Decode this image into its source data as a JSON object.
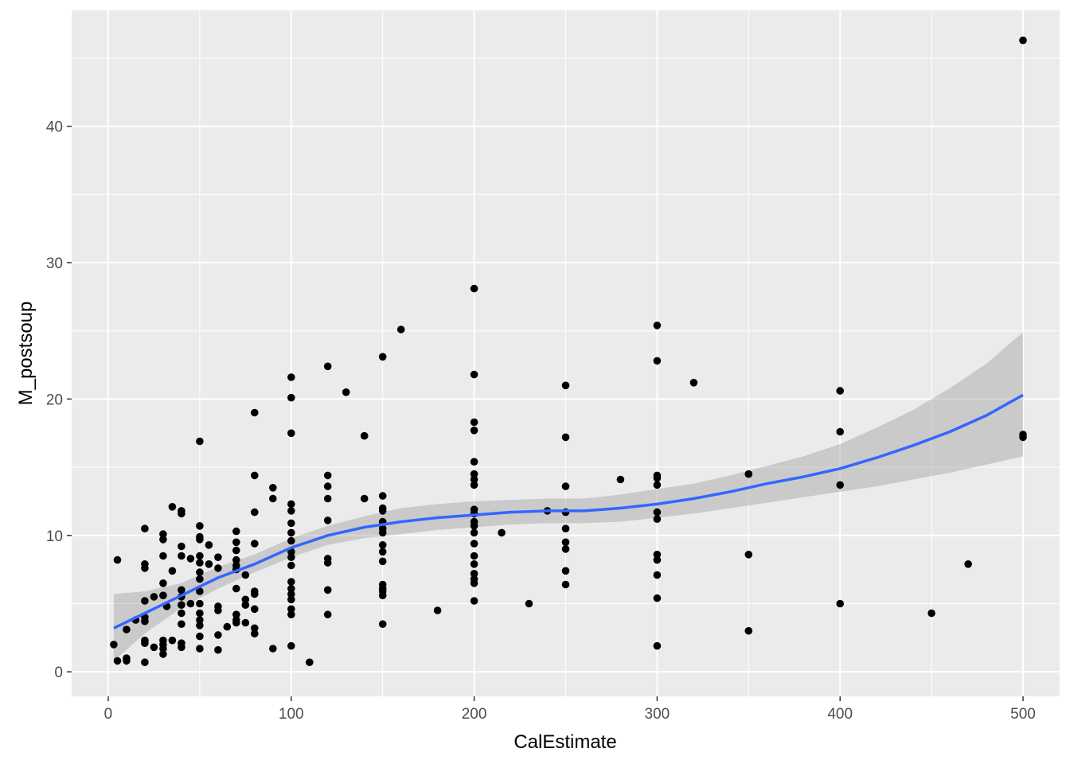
{
  "colors": {
    "panel_background": "#EBEBEB",
    "grid": "#FFFFFF",
    "points": "#000000",
    "smooth_line": "#3366FF",
    "confidence_band": "#999999",
    "tick": "#333333"
  },
  "chart_data": {
    "type": "scatter",
    "title": "",
    "xlabel": "CalEstimate",
    "ylabel": "M_postsoup",
    "xlim": [
      -20,
      520
    ],
    "ylim": [
      -1.8,
      48.5
    ],
    "x_ticks": [
      0,
      100,
      200,
      300,
      400,
      500
    ],
    "x_tick_labels": [
      "0",
      "100",
      "200",
      "300",
      "400",
      "500"
    ],
    "y_ticks": [
      0,
      10,
      20,
      30,
      40
    ],
    "y_tick_labels": [
      "0",
      "10",
      "20",
      "30",
      "40"
    ],
    "grid": true,
    "legend": "none",
    "series": [
      {
        "type": "scatter",
        "points": [
          [
            3,
            2.0
          ],
          [
            5,
            8.2
          ],
          [
            5,
            0.8
          ],
          [
            10,
            3.1
          ],
          [
            10,
            1.0
          ],
          [
            10,
            0.8
          ],
          [
            15,
            3.8
          ],
          [
            20,
            10.5
          ],
          [
            20,
            7.9
          ],
          [
            20,
            7.6
          ],
          [
            20,
            5.2
          ],
          [
            20,
            4.0
          ],
          [
            20,
            3.7
          ],
          [
            20,
            2.3
          ],
          [
            20,
            2.1
          ],
          [
            20,
            0.7
          ],
          [
            25,
            5.5
          ],
          [
            25,
            1.8
          ],
          [
            30,
            10.1
          ],
          [
            30,
            9.7
          ],
          [
            30,
            8.5
          ],
          [
            30,
            6.5
          ],
          [
            30,
            5.6
          ],
          [
            30,
            2.3
          ],
          [
            30,
            2.0
          ],
          [
            30,
            1.7
          ],
          [
            30,
            1.3
          ],
          [
            32,
            4.8
          ],
          [
            35,
            12.1
          ],
          [
            35,
            7.4
          ],
          [
            35,
            2.3
          ],
          [
            40,
            11.8
          ],
          [
            40,
            11.6
          ],
          [
            40,
            9.2
          ],
          [
            40,
            8.5
          ],
          [
            40,
            6.0
          ],
          [
            40,
            5.5
          ],
          [
            40,
            4.9
          ],
          [
            40,
            4.3
          ],
          [
            40,
            3.5
          ],
          [
            40,
            2.1
          ],
          [
            40,
            1.8
          ],
          [
            45,
            5.0
          ],
          [
            45,
            8.3
          ],
          [
            50,
            16.9
          ],
          [
            50,
            10.7
          ],
          [
            50,
            9.9
          ],
          [
            50,
            9.7
          ],
          [
            50,
            8.5
          ],
          [
            50,
            8.0
          ],
          [
            50,
            7.3
          ],
          [
            50,
            6.8
          ],
          [
            50,
            5.9
          ],
          [
            50,
            5.0
          ],
          [
            50,
            4.3
          ],
          [
            50,
            3.8
          ],
          [
            50,
            3.4
          ],
          [
            50,
            2.6
          ],
          [
            50,
            1.7
          ],
          [
            55,
            9.3
          ],
          [
            55,
            7.9
          ],
          [
            60,
            8.4
          ],
          [
            60,
            7.6
          ],
          [
            60,
            4.8
          ],
          [
            60,
            4.5
          ],
          [
            60,
            2.7
          ],
          [
            60,
            1.6
          ],
          [
            65,
            3.3
          ],
          [
            70,
            10.3
          ],
          [
            70,
            9.5
          ],
          [
            70,
            8.9
          ],
          [
            70,
            8.2
          ],
          [
            70,
            7.8
          ],
          [
            70,
            7.5
          ],
          [
            70,
            6.1
          ],
          [
            70,
            4.2
          ],
          [
            70,
            3.8
          ],
          [
            70,
            3.6
          ],
          [
            75,
            7.1
          ],
          [
            75,
            5.3
          ],
          [
            75,
            4.9
          ],
          [
            75,
            3.6
          ],
          [
            80,
            19.0
          ],
          [
            80,
            14.4
          ],
          [
            80,
            11.7
          ],
          [
            80,
            9.4
          ],
          [
            80,
            5.9
          ],
          [
            80,
            5.7
          ],
          [
            80,
            4.6
          ],
          [
            80,
            3.2
          ],
          [
            80,
            2.8
          ],
          [
            90,
            13.5
          ],
          [
            90,
            12.7
          ],
          [
            90,
            1.7
          ],
          [
            100,
            21.6
          ],
          [
            100,
            20.1
          ],
          [
            100,
            17.5
          ],
          [
            100,
            12.3
          ],
          [
            100,
            11.8
          ],
          [
            100,
            10.9
          ],
          [
            100,
            10.2
          ],
          [
            100,
            9.6
          ],
          [
            100,
            8.8
          ],
          [
            100,
            8.4
          ],
          [
            100,
            7.8
          ],
          [
            100,
            6.6
          ],
          [
            100,
            6.1
          ],
          [
            100,
            5.7
          ],
          [
            100,
            5.3
          ],
          [
            100,
            4.6
          ],
          [
            100,
            4.2
          ],
          [
            100,
            1.9
          ],
          [
            110,
            0.7
          ],
          [
            120,
            22.4
          ],
          [
            120,
            14.4
          ],
          [
            120,
            13.6
          ],
          [
            120,
            12.7
          ],
          [
            120,
            11.1
          ],
          [
            120,
            8.3
          ],
          [
            120,
            8.0
          ],
          [
            120,
            6.0
          ],
          [
            120,
            4.2
          ],
          [
            130,
            20.5
          ],
          [
            140,
            17.3
          ],
          [
            140,
            12.7
          ],
          [
            150,
            23.1
          ],
          [
            150,
            12.9
          ],
          [
            150,
            12.0
          ],
          [
            150,
            11.8
          ],
          [
            150,
            11.0
          ],
          [
            150,
            10.5
          ],
          [
            150,
            10.2
          ],
          [
            150,
            9.3
          ],
          [
            150,
            8.8
          ],
          [
            150,
            8.1
          ],
          [
            150,
            6.4
          ],
          [
            150,
            6.1
          ],
          [
            150,
            5.9
          ],
          [
            150,
            5.6
          ],
          [
            150,
            3.5
          ],
          [
            160,
            25.1
          ],
          [
            180,
            4.5
          ],
          [
            200,
            28.1
          ],
          [
            200,
            21.8
          ],
          [
            200,
            18.3
          ],
          [
            200,
            17.7
          ],
          [
            200,
            15.4
          ],
          [
            200,
            14.5
          ],
          [
            200,
            14.1
          ],
          [
            200,
            13.7
          ],
          [
            200,
            11.9
          ],
          [
            200,
            11.6
          ],
          [
            200,
            11.0
          ],
          [
            200,
            10.7
          ],
          [
            200,
            10.2
          ],
          [
            200,
            9.4
          ],
          [
            200,
            8.5
          ],
          [
            200,
            7.9
          ],
          [
            200,
            7.2
          ],
          [
            200,
            6.8
          ],
          [
            200,
            6.5
          ],
          [
            200,
            5.2
          ],
          [
            215,
            10.2
          ],
          [
            230,
            5.0
          ],
          [
            240,
            11.8
          ],
          [
            250,
            21.0
          ],
          [
            250,
            17.2
          ],
          [
            250,
            13.6
          ],
          [
            250,
            11.7
          ],
          [
            250,
            10.5
          ],
          [
            250,
            9.5
          ],
          [
            250,
            9.0
          ],
          [
            250,
            7.4
          ],
          [
            250,
            6.4
          ],
          [
            280,
            14.1
          ],
          [
            300,
            25.4
          ],
          [
            300,
            22.8
          ],
          [
            300,
            14.4
          ],
          [
            300,
            14.2
          ],
          [
            300,
            13.7
          ],
          [
            300,
            11.7
          ],
          [
            300,
            11.2
          ],
          [
            300,
            8.6
          ],
          [
            300,
            8.2
          ],
          [
            300,
            7.1
          ],
          [
            300,
            5.4
          ],
          [
            300,
            1.9
          ],
          [
            320,
            21.2
          ],
          [
            350,
            14.5
          ],
          [
            350,
            8.6
          ],
          [
            350,
            3.0
          ],
          [
            400,
            20.6
          ],
          [
            400,
            17.6
          ],
          [
            400,
            13.7
          ],
          [
            400,
            5.0
          ],
          [
            450,
            4.3
          ],
          [
            470,
            7.9
          ],
          [
            500,
            46.3
          ],
          [
            500,
            17.4
          ],
          [
            500,
            17.2
          ]
        ]
      },
      {
        "type": "smooth",
        "method": "loess",
        "x": [
          3,
          20,
          40,
          60,
          80,
          100,
          120,
          140,
          160,
          180,
          200,
          220,
          240,
          260,
          280,
          300,
          320,
          340,
          360,
          380,
          400,
          420,
          440,
          460,
          480,
          500
        ],
        "fit": [
          3.2,
          4.3,
          5.6,
          6.9,
          7.9,
          9.1,
          10.0,
          10.6,
          11.0,
          11.3,
          11.5,
          11.7,
          11.8,
          11.8,
          12.0,
          12.3,
          12.7,
          13.2,
          13.8,
          14.3,
          14.9,
          15.7,
          16.6,
          17.6,
          18.8,
          20.3
        ],
        "lower": [
          0.8,
          2.8,
          4.7,
          6.1,
          7.3,
          8.4,
          9.3,
          9.8,
          10.1,
          10.4,
          10.6,
          10.8,
          10.9,
          10.9,
          11.0,
          11.3,
          11.6,
          12.0,
          12.4,
          12.8,
          13.2,
          13.6,
          14.1,
          14.6,
          15.2,
          15.8
        ],
        "upper": [
          5.7,
          5.9,
          6.5,
          7.7,
          8.6,
          9.8,
          10.7,
          11.4,
          12.0,
          12.3,
          12.5,
          12.6,
          12.7,
          12.7,
          13.0,
          13.4,
          13.8,
          14.4,
          15.1,
          15.8,
          16.7,
          17.9,
          19.2,
          20.8,
          22.6,
          24.9
        ]
      }
    ]
  }
}
